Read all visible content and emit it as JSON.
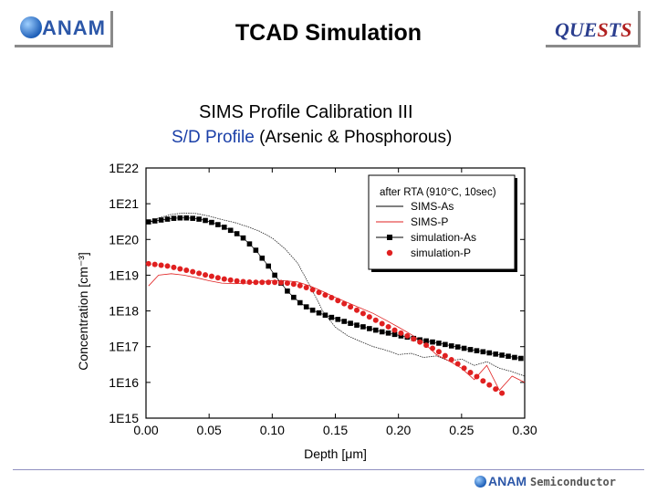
{
  "header": {
    "logo_text": "ANAM",
    "title": "TCAD Simulation",
    "quests_logo_parts": [
      "QUE",
      "S",
      "T",
      "S"
    ]
  },
  "subtitle": {
    "line1": "SIMS Profile Calibration III",
    "line2_colored": "S/D Profile",
    "line2_rest": " (Arsenic & Phosphorous)"
  },
  "footer": {
    "logo_text": "ANAM",
    "semiconductor_text": "Semiconductor"
  },
  "colors": {
    "title_blue": "#1a3fa8",
    "simulation_as": "#000000",
    "simulation_p": "#e02020",
    "sims_p": "#e02020"
  },
  "chart_data": {
    "type": "line",
    "xlabel": "Depth [μm]",
    "ylabel": "Concentration [cm⁻³]",
    "xlim": [
      0,
      0.3
    ],
    "ylim": [
      1000000000000000.0,
      1e+22
    ],
    "y_scale": "log",
    "x_ticks": [
      "0.00",
      "0.05",
      "0.10",
      "0.15",
      "0.20",
      "0.25",
      "0.30"
    ],
    "y_ticks": [
      "1E15",
      "1E16",
      "1E17",
      "1E18",
      "1E19",
      "1E20",
      "1E21",
      "1E22"
    ],
    "legend_title": "after RTA (910°C, 10sec)",
    "legend_position": "top-right",
    "series": [
      {
        "name": "SIMS-As",
        "style": "solid-black",
        "x": [
          0.002,
          0.01,
          0.02,
          0.03,
          0.04,
          0.05,
          0.06,
          0.07,
          0.08,
          0.09,
          0.1,
          0.11,
          0.12,
          0.13,
          0.14,
          0.15,
          0.16,
          0.17,
          0.18,
          0.19,
          0.2,
          0.21,
          0.22,
          0.23,
          0.24,
          0.25,
          0.26,
          0.27,
          0.28,
          0.29,
          0.3
        ],
        "y": [
          3e+20,
          4e+20,
          5e+20,
          5.5e+20,
          5.3e+20,
          4.5e+20,
          3.6e+20,
          3e+20,
          2.3e+20,
          1.7e+20,
          1.1e+20,
          5.5e+19,
          2.2e+19,
          5e+18,
          1e+18,
          3.5e+17,
          2e+17,
          1.4e+17,
          1e+17,
          8e+16,
          6e+16,
          6.5e+16,
          5e+16,
          5.5e+16,
          4e+16,
          4.5e+16,
          3e+16,
          3.8e+16,
          2.5e+16,
          2e+16,
          1.5e+16
        ]
      },
      {
        "name": "SIMS-P",
        "style": "solid-red",
        "x": [
          0.002,
          0.01,
          0.02,
          0.03,
          0.04,
          0.05,
          0.06,
          0.07,
          0.08,
          0.09,
          0.1,
          0.11,
          0.12,
          0.13,
          0.14,
          0.15,
          0.16,
          0.17,
          0.18,
          0.19,
          0.2,
          0.21,
          0.22,
          0.23,
          0.24,
          0.25,
          0.26,
          0.27,
          0.28,
          0.29,
          0.3
        ],
        "y": [
          5e+18,
          1e+19,
          1.1e+19,
          1e+19,
          8.5e+18,
          7e+18,
          6e+18,
          5.8e+18,
          6e+18,
          6.5e+18,
          7e+18,
          7e+18,
          6.5e+18,
          5e+18,
          3.5e+18,
          2.4e+18,
          1.7e+18,
          1.2e+18,
          8.5e+17,
          5.5e+17,
          3.5e+17,
          2.2e+17,
          1.3e+17,
          6e+16,
          4e+16,
          2.5e+16,
          1.2e+16,
          3e+16,
          6000000000000000.0,
          1.5e+16,
          1e+16
        ]
      },
      {
        "name": "simulation-As",
        "style": "black-square-markers",
        "x": [
          0.002,
          0.007,
          0.012,
          0.017,
          0.022,
          0.027,
          0.032,
          0.037,
          0.042,
          0.047,
          0.052,
          0.057,
          0.062,
          0.067,
          0.072,
          0.077,
          0.082,
          0.087,
          0.092,
          0.097,
          0.102,
          0.107,
          0.112,
          0.117,
          0.122,
          0.127,
          0.132,
          0.137,
          0.142,
          0.147,
          0.152,
          0.157,
          0.162,
          0.167,
          0.172,
          0.177,
          0.182,
          0.187,
          0.192,
          0.197,
          0.202,
          0.207,
          0.212,
          0.217,
          0.222,
          0.227,
          0.232,
          0.237,
          0.242,
          0.247,
          0.252,
          0.257,
          0.262,
          0.267,
          0.272,
          0.277,
          0.282,
          0.287,
          0.292,
          0.297
        ],
        "y": [
          3.1e+20,
          3.3e+20,
          3.5e+20,
          3.7e+20,
          3.9e+20,
          4e+20,
          4e+20,
          3.9e+20,
          3.7e+20,
          3.4e+20,
          3e+20,
          2.6e+20,
          2.2e+20,
          1.8e+20,
          1.45e+20,
          1.1e+20,
          7.5e+19,
          5e+19,
          3e+19,
          1.8e+19,
          1e+19,
          6e+18,
          3.6e+18,
          2.4e+18,
          1.7e+18,
          1.3e+18,
          1.05e+18,
          8.8e+17,
          7.6e+17,
          6.6e+17,
          5.8e+17,
          5.1e+17,
          4.5e+17,
          4e+17,
          3.6e+17,
          3.2e+17,
          2.9e+17,
          2.6e+17,
          2.4e+17,
          2.2e+17,
          2e+17,
          1.85e+17,
          1.7e+17,
          1.55e+17,
          1.45e+17,
          1.35e+17,
          1.25e+17,
          1.15e+17,
          1.05e+17,
          9.8e+16,
          9e+16,
          8.3e+16,
          7.7e+16,
          7.2e+16,
          6.7e+16,
          6.2e+16,
          5.8e+16,
          5.4e+16,
          5e+16,
          4.7e+16
        ]
      },
      {
        "name": "simulation-P",
        "style": "red-circle-markers",
        "x": [
          0.002,
          0.007,
          0.012,
          0.017,
          0.022,
          0.027,
          0.032,
          0.037,
          0.042,
          0.047,
          0.052,
          0.057,
          0.062,
          0.067,
          0.072,
          0.077,
          0.082,
          0.087,
          0.092,
          0.097,
          0.102,
          0.107,
          0.112,
          0.117,
          0.122,
          0.127,
          0.132,
          0.137,
          0.142,
          0.147,
          0.152,
          0.157,
          0.162,
          0.167,
          0.172,
          0.177,
          0.182,
          0.187,
          0.192,
          0.197,
          0.202,
          0.207,
          0.212,
          0.217,
          0.222,
          0.227,
          0.232,
          0.237,
          0.242,
          0.247,
          0.252,
          0.257,
          0.262,
          0.267,
          0.272,
          0.277,
          0.282
        ],
        "y": [
          2.1e+19,
          2e+19,
          1.9e+19,
          1.8e+19,
          1.65e+19,
          1.5e+19,
          1.38e+19,
          1.25e+19,
          1.13e+19,
          1.02e+19,
          9.3e+18,
          8.5e+18,
          7.8e+18,
          7.3e+18,
          6.9e+18,
          6.6e+18,
          6.4e+18,
          6.3e+18,
          6.3e+18,
          6.3e+18,
          6.3e+18,
          6.2e+18,
          6e+18,
          5.6e+18,
          5.1e+18,
          4.5e+18,
          3.9e+18,
          3.3e+18,
          2.8e+18,
          2.35e+18,
          1.95e+18,
          1.6e+18,
          1.3e+18,
          1.05e+18,
          8.5e+17,
          6.8e+17,
          5.5e+17,
          4.4e+17,
          3.6e+17,
          2.9e+17,
          2.4e+17,
          2e+17,
          1.65e+17,
          1.35e+17,
          1.1e+17,
          9e+16,
          7.2e+16,
          5.6e+16,
          4.3e+16,
          3.3e+16,
          2.5e+16,
          1.9e+16,
          1.45e+16,
          1.1e+16,
          8500000000000000.0,
          6500000000000000.0,
          5000000000000000.0
        ]
      }
    ]
  }
}
